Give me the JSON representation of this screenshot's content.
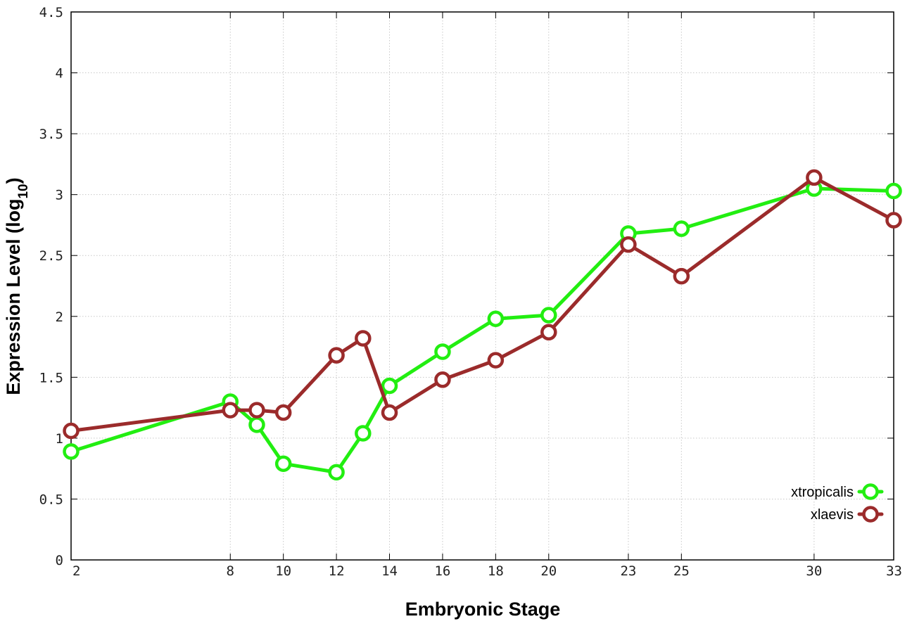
{
  "chart_data": {
    "type": "line",
    "xlabel": "Embryonic Stage",
    "ylabel_main": "Expression Level (log",
    "ylabel_sub": "10",
    "ylabel_close": ")",
    "xlim": [
      2,
      33
    ],
    "ylim": [
      0,
      4.5
    ],
    "x_ticks": [
      2,
      8,
      10,
      12,
      14,
      16,
      18,
      20,
      23,
      25,
      30,
      33
    ],
    "y_ticks": [
      {
        "value": 0,
        "label": "0"
      },
      {
        "value": 0.5,
        "label": "0.5"
      },
      {
        "value": 1,
        "label": "1"
      },
      {
        "value": 1.5,
        "label": "1.5"
      },
      {
        "value": 2,
        "label": "2"
      },
      {
        "value": 2.5,
        "label": "2.5"
      },
      {
        "value": 3,
        "label": "3"
      },
      {
        "value": 3.5,
        "label": "3.5"
      },
      {
        "value": 4,
        "label": "4"
      },
      {
        "value": 4.5,
        "label": "4.5"
      }
    ],
    "grid": true,
    "legend_position": "bottom-right",
    "x": [
      2,
      8,
      9,
      10,
      12,
      13,
      14,
      16,
      18,
      20,
      23,
      25,
      30,
      33
    ],
    "series": [
      {
        "name": "xtropicalis",
        "color": "#22ee11",
        "values": [
          0.89,
          1.3,
          1.11,
          0.79,
          0.72,
          1.04,
          1.43,
          1.71,
          1.98,
          2.01,
          2.68,
          2.72,
          3.05,
          3.03
        ]
      },
      {
        "name": "xlaevis",
        "color": "#9b2b2b",
        "values": [
          1.06,
          1.23,
          1.23,
          1.21,
          1.68,
          1.82,
          1.21,
          1.48,
          1.64,
          1.87,
          2.59,
          2.33,
          3.14,
          2.79
        ]
      }
    ]
  }
}
